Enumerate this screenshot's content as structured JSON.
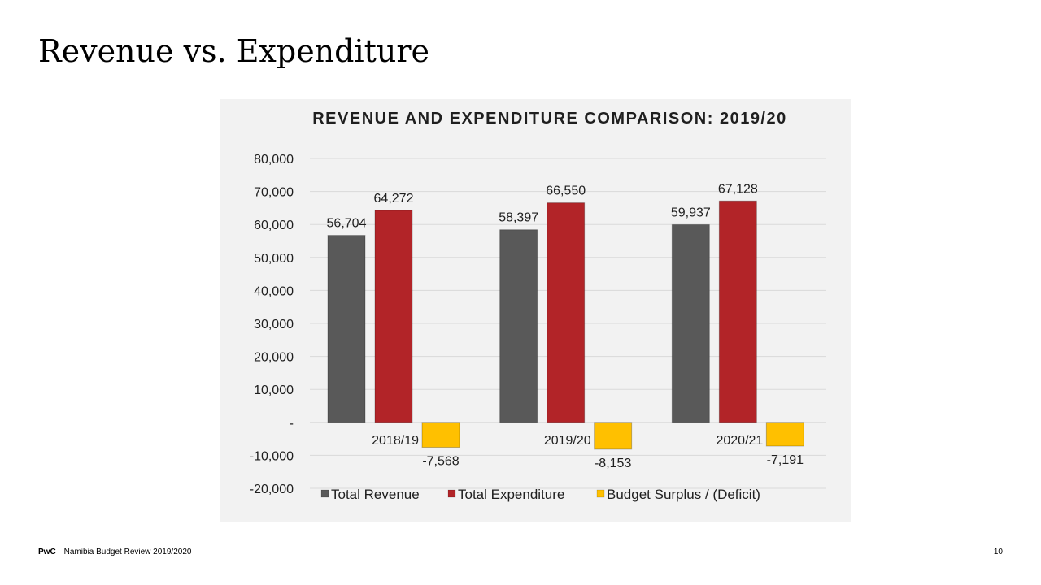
{
  "slide": {
    "title": "Revenue vs. Expenditure",
    "footer_brand": "PwC",
    "footer_text": "Namibia Budget Review 2019/2020",
    "page_number": "10"
  },
  "chart_data": {
    "type": "bar",
    "title": "REVENUE AND EXPENDITURE COMPARISON: 2019/20",
    "categories": [
      "2018/19",
      "2019/20",
      "2020/21"
    ],
    "series": [
      {
        "name": "Total Revenue",
        "values": [
          56704,
          58397,
          59937
        ],
        "labels": [
          "56,704",
          "58,397",
          "59,937"
        ],
        "color": "#595959"
      },
      {
        "name": "Total Expenditure",
        "values": [
          64272,
          66550,
          67128
        ],
        "labels": [
          "64,272",
          "66,550",
          "67,128"
        ],
        "color": "#b22428"
      },
      {
        "name": "Budget Surplus / (Deficit)",
        "values": [
          -7568,
          -8153,
          -7191
        ],
        "labels": [
          "-7,568",
          "-8,153",
          "-7,191"
        ],
        "color": "#ffc000"
      }
    ],
    "ylim": [
      -20000,
      80000
    ],
    "yticks": [
      -20000,
      -10000,
      0,
      10000,
      20000,
      30000,
      40000,
      50000,
      60000,
      70000,
      80000
    ],
    "ytick_labels": [
      "-20,000",
      "-10,000",
      "-",
      "10,000",
      "20,000",
      "30,000",
      "40,000",
      "50,000",
      "60,000",
      "70,000",
      "80,000"
    ],
    "xlabel": "",
    "ylabel": "",
    "grid": true,
    "legend_position": "bottom"
  }
}
